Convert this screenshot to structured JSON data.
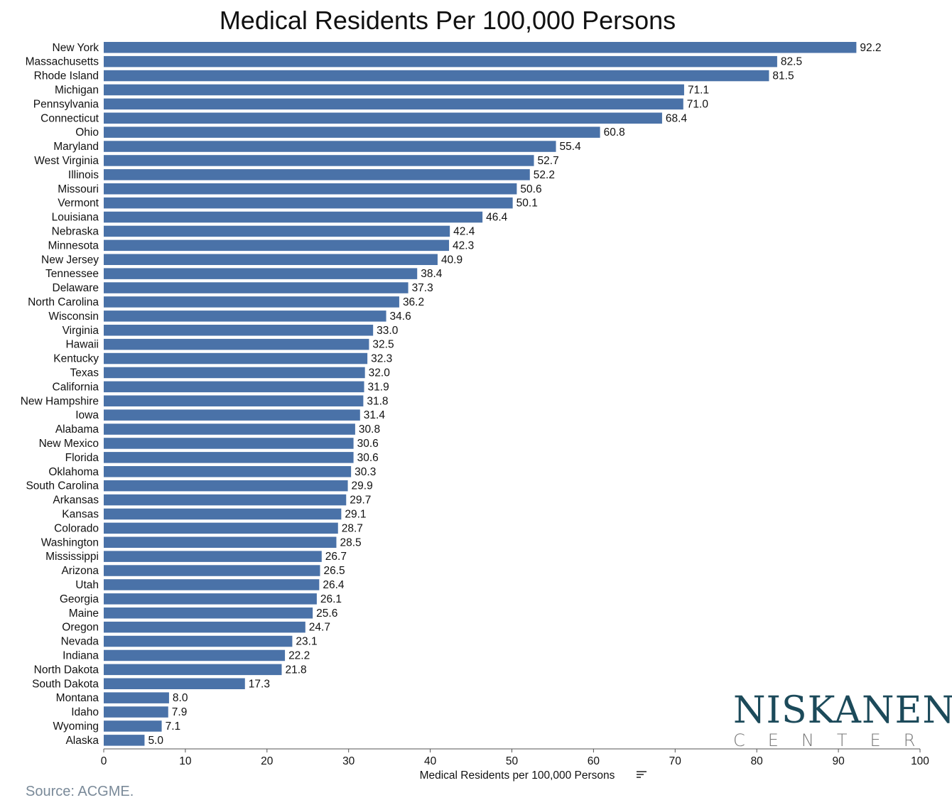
{
  "title": "Medical Residents Per 100,000 Persons",
  "source": "Source: ACGME.",
  "logo": {
    "main": "NISKANEN",
    "sub": "CENTER"
  },
  "colors": {
    "bar": "#4a72a8",
    "logo": "#1c4a5a",
    "source": "#7a8a99"
  },
  "chart_data": {
    "type": "bar",
    "orientation": "horizontal",
    "title": "Medical Residents Per 100,000 Persons",
    "xlabel": "Medical Residents per 100,000 Persons",
    "xlim": [
      0,
      100
    ],
    "xticks": [
      0,
      10,
      20,
      30,
      40,
      50,
      60,
      70,
      80,
      90,
      100
    ],
    "grid": false,
    "categories": [
      "New York",
      "Massachusetts",
      "Rhode Island",
      "Michigan",
      "Pennsylvania",
      "Connecticut",
      "Ohio",
      "Maryland",
      "West Virginia",
      "Illinois",
      "Missouri",
      "Vermont",
      "Louisiana",
      "Nebraska",
      "Minnesota",
      "New Jersey",
      "Tennessee",
      "Delaware",
      "North Carolina",
      "Wisconsin",
      "Virginia",
      "Hawaii",
      "Kentucky",
      "Texas",
      "California",
      "New Hampshire",
      "Iowa",
      "Alabama",
      "New Mexico",
      "Florida",
      "Oklahoma",
      "South Carolina",
      "Arkansas",
      "Kansas",
      "Colorado",
      "Washington",
      "Mississippi",
      "Arizona",
      "Utah",
      "Georgia",
      "Maine",
      "Oregon",
      "Nevada",
      "Indiana",
      "North Dakota",
      "South Dakota",
      "Montana",
      "Idaho",
      "Wyoming",
      "Alaska"
    ],
    "values": [
      92.2,
      82.5,
      81.5,
      71.1,
      71.0,
      68.4,
      60.8,
      55.4,
      52.7,
      52.2,
      50.6,
      50.1,
      46.4,
      42.4,
      42.3,
      40.9,
      38.4,
      37.3,
      36.2,
      34.6,
      33.0,
      32.5,
      32.3,
      32.0,
      31.9,
      31.8,
      31.4,
      30.8,
      30.6,
      30.6,
      30.3,
      29.9,
      29.7,
      29.1,
      28.7,
      28.5,
      26.7,
      26.5,
      26.4,
      26.1,
      25.6,
      24.7,
      23.1,
      22.2,
      21.8,
      17.3,
      8.0,
      7.9,
      7.1,
      5.0
    ]
  }
}
